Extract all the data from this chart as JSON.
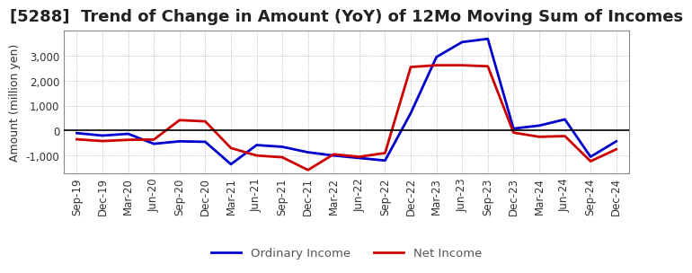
{
  "title": "[5288]  Trend of Change in Amount (YoY) of 12Mo Moving Sum of Incomes",
  "ylabel": "Amount (million yen)",
  "x_labels": [
    "Sep-19",
    "Dec-19",
    "Mar-20",
    "Jun-20",
    "Sep-20",
    "Dec-20",
    "Mar-21",
    "Jun-21",
    "Sep-21",
    "Dec-21",
    "Mar-22",
    "Jun-22",
    "Sep-22",
    "Dec-22",
    "Mar-23",
    "Jun-23",
    "Sep-23",
    "Dec-23",
    "Mar-24",
    "Jun-24",
    "Sep-24",
    "Dec-24"
  ],
  "ordinary_income": [
    -100,
    -200,
    -130,
    -530,
    -430,
    -450,
    -1350,
    -580,
    -650,
    -870,
    -1000,
    -1100,
    -1200,
    700,
    2950,
    3550,
    3680,
    80,
    200,
    450,
    -1050,
    -430
  ],
  "net_income": [
    -350,
    -420,
    -370,
    -360,
    420,
    370,
    -700,
    -1000,
    -1070,
    -1580,
    -950,
    -1050,
    -900,
    2550,
    2620,
    2620,
    2580,
    -80,
    -250,
    -220,
    -1230,
    -750
  ],
  "ordinary_income_color": "#0000cc",
  "net_income_color": "#cc0000",
  "ylim_min": -1700,
  "ylim_max": 4000,
  "yticks": [
    -1000,
    0,
    1000,
    2000,
    3000
  ],
  "background_color": "#ffffff",
  "plot_bg_color": "#ffffff",
  "grid_color": "#aaaaaa",
  "line_width": 2.0,
  "title_fontsize": 13,
  "tick_fontsize": 8.5,
  "ylabel_fontsize": 9,
  "legend_labels": [
    "Ordinary Income",
    "Net Income"
  ],
  "legend_text_color": "#555555"
}
